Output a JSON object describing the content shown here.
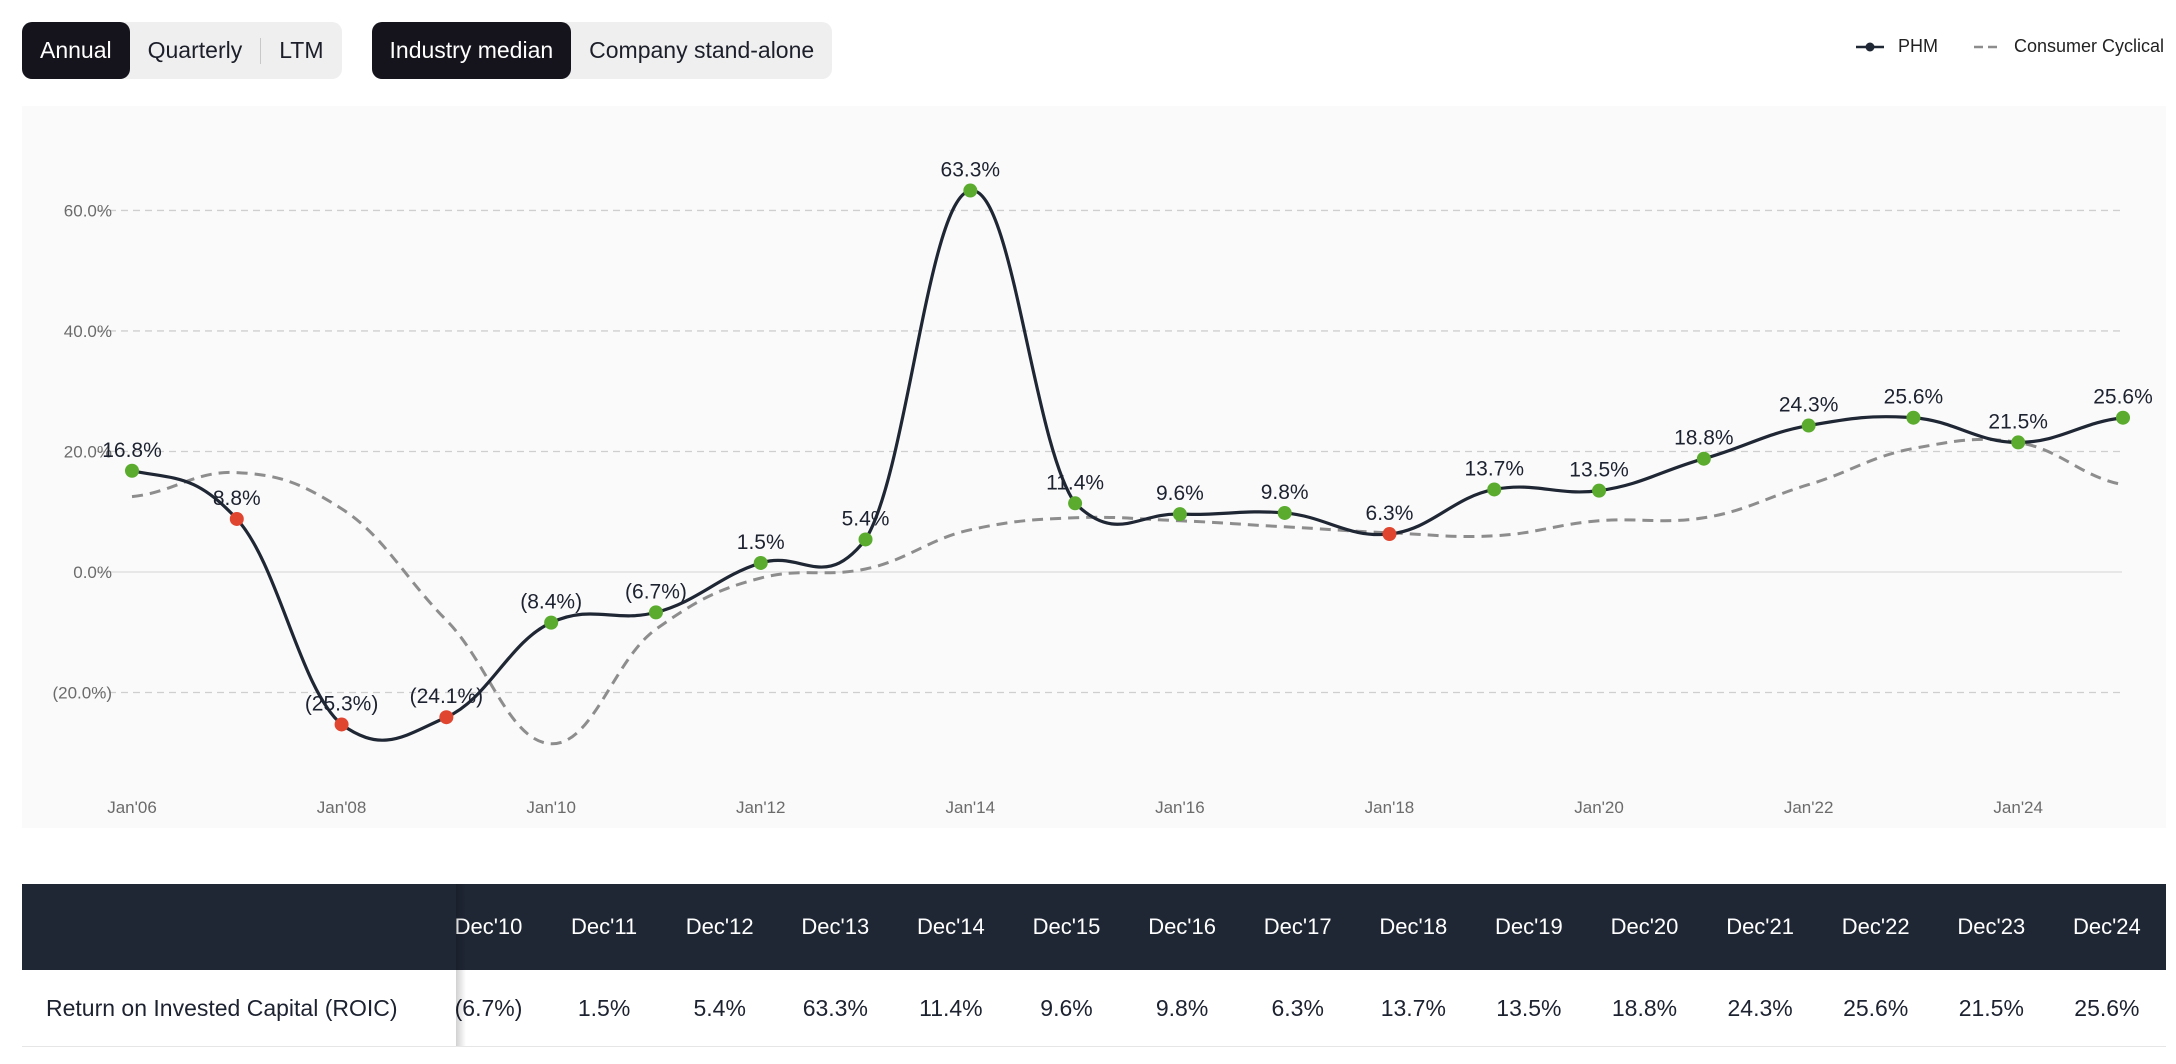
{
  "toolbar": {
    "period": [
      {
        "label": "Annual",
        "active": true
      },
      {
        "label": "Quarterly",
        "active": false
      },
      {
        "label": "LTM",
        "active": false
      }
    ],
    "benchmark": [
      {
        "label": "Industry median",
        "active": true
      },
      {
        "label": "Company stand-alone",
        "active": false
      }
    ]
  },
  "legend": {
    "company": "PHM",
    "industry": "Consumer Cyclical"
  },
  "colors": {
    "company_line": "#1f2634",
    "industry_line": "#8d8d8d",
    "positive_marker": "#5aab2e",
    "negative_marker": "#e0452f",
    "grid": "#cfcfcf"
  },
  "chart_data": {
    "type": "line",
    "x": [
      "2006",
      "2007",
      "2008",
      "2009",
      "2010",
      "2011",
      "2012",
      "2013",
      "2014",
      "2015",
      "2016",
      "2017",
      "2018",
      "2019",
      "2020",
      "2021",
      "2022",
      "2023",
      "2024",
      "2025"
    ],
    "x_tick_labels": [
      "Jan'06",
      "Jan'08",
      "Jan'10",
      "Jan'12",
      "Jan'14",
      "Jan'16",
      "Jan'18",
      "Jan'20",
      "Jan'22",
      "Jan'24"
    ],
    "y_tick_labels": [
      "60.0%",
      "40.0%",
      "20.0%",
      "0.0%",
      "(20.0%)"
    ],
    "y_ticks": [
      60,
      40,
      20,
      0,
      -20
    ],
    "ylim": [
      -38,
      76
    ],
    "grid": true,
    "legend_position": "top-right",
    "series": [
      {
        "name": "PHM",
        "style": "solid",
        "values": [
          16.8,
          8.8,
          -25.3,
          -24.1,
          -8.4,
          -6.7,
          1.5,
          5.4,
          63.3,
          11.4,
          9.6,
          9.8,
          6.3,
          13.7,
          13.5,
          18.8,
          24.3,
          25.6,
          21.5,
          25.6
        ],
        "labels": [
          "16.8%",
          "8.8%",
          "(25.3%)",
          "(24.1%)",
          "(8.4%)",
          "(6.7%)",
          "1.5%",
          "5.4%",
          "63.3%",
          "11.4%",
          "9.6%",
          "9.8%",
          "6.3%",
          "13.7%",
          "13.5%",
          "18.8%",
          "24.3%",
          "25.6%",
          "21.5%",
          "25.6%"
        ],
        "marker_status": [
          "good",
          "bad",
          "bad",
          "bad",
          "good",
          "good",
          "good",
          "good",
          "good",
          "good",
          "good",
          "good",
          "bad",
          "good",
          "good",
          "good",
          "good",
          "good",
          "good",
          "good"
        ]
      },
      {
        "name": "Consumer Cyclical",
        "style": "dashed",
        "values": [
          12.5,
          16.5,
          10.5,
          -8.0,
          -28.5,
          -9.5,
          -1.0,
          0.5,
          7.0,
          9.0,
          8.5,
          7.5,
          6.5,
          6.0,
          8.5,
          9.0,
          14.5,
          20.5,
          21.5,
          14.5
        ]
      }
    ]
  },
  "table": {
    "metric_label": "Return on Invested Capital (ROIC)",
    "columns": [
      "Dec'10",
      "Dec'11",
      "Dec'12",
      "Dec'13",
      "Dec'14",
      "Dec'15",
      "Dec'16",
      "Dec'17",
      "Dec'18",
      "Dec'19",
      "Dec'20",
      "Dec'21",
      "Dec'22",
      "Dec'23",
      "Dec'24"
    ],
    "values": [
      "(6.7%)",
      "1.5%",
      "5.4%",
      "63.3%",
      "11.4%",
      "9.6%",
      "9.8%",
      "6.3%",
      "13.7%",
      "13.5%",
      "18.8%",
      "24.3%",
      "25.6%",
      "21.5%",
      "25.6%"
    ]
  }
}
